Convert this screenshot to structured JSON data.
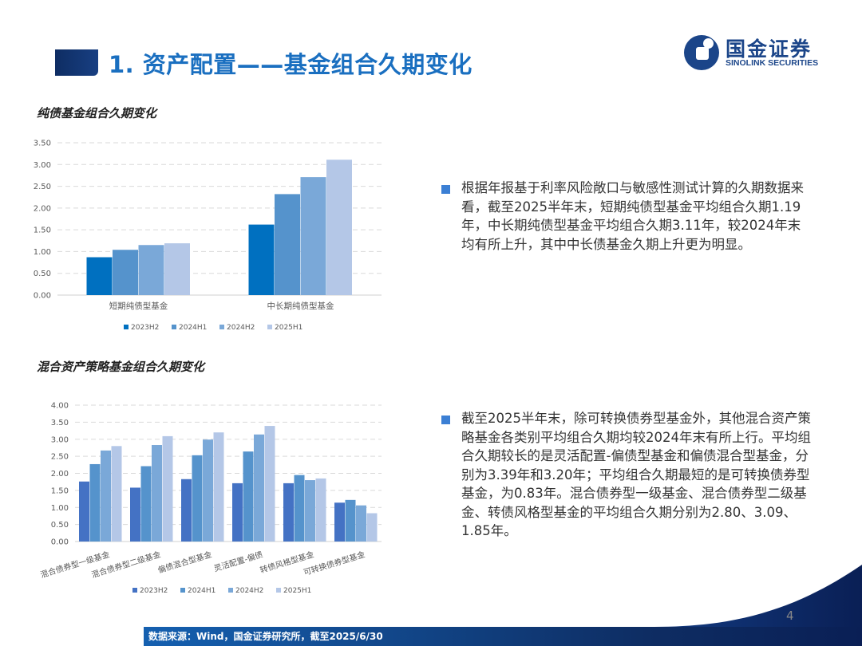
{
  "header": {
    "title": "1. 资产配置——基金组合久期变化",
    "logo_cn": "国金证券",
    "logo_en": "SINOLINK SECURITIES"
  },
  "chart1": {
    "title": "纯债基金组合久期变化"
  },
  "chart2": {
    "title": "混合资产策略基金组合久期变化"
  },
  "bullets": [
    {
      "text": "根据年报基于利率风险敞口与敏感性测试计算的久期数据来看，截至2025半年末，短期纯债型基金平均组合久期1.19年，中长期纯债型基金平均组合久期3.11年，较2024年末均有所上升，其中中长债基金久期上升更为明显。"
    },
    {
      "text": "截至2025半年末，除可转换债券型基金外，其他混合资产策略基金各类别平均组合久期均较2024年末有所上行。平均组合久期较长的是灵活配置-偏债型基金和偏债混合型基金，分别为3.39年和3.20年；平均组合久期最短的是可转换债券型基金，为0.83年。混合债券型一级基金、混合债券型二级基金、转债风格型基金的平均组合久期分别为2.80、3.09、1.85年。"
    }
  ],
  "footer": {
    "source": "数据来源：Wind，国金证券研究所，截至2025/6/30",
    "page_number": "4"
  },
  "colors": {
    "title_blue": "#1a6fc0",
    "brand_navy": "#1b4589",
    "bullet_blue": "#3b7fd4"
  },
  "chart_data": [
    {
      "type": "bar",
      "title": "纯债基金组合久期变化",
      "categories": [
        "短期纯债型基金",
        "中长期纯债型基金"
      ],
      "series": [
        {
          "name": "2023H2",
          "color": "#0070c0",
          "values": [
            0.87,
            1.62
          ]
        },
        {
          "name": "2024H1",
          "color": "#5593cc",
          "values": [
            1.04,
            2.32
          ]
        },
        {
          "name": "2024H2",
          "color": "#7aa8d8",
          "values": [
            1.15,
            2.71
          ]
        },
        {
          "name": "2025H1",
          "color": "#b4c7e7",
          "values": [
            1.19,
            3.11
          ]
        }
      ],
      "yticks": [
        "0.00",
        "0.50",
        "1.00",
        "1.50",
        "2.00",
        "2.50",
        "3.00",
        "3.50"
      ],
      "ylim": [
        0,
        3.5
      ],
      "xlabel": "",
      "ylabel": "",
      "grid": "dashed horizontal",
      "legend_position": "bottom"
    },
    {
      "type": "bar",
      "title": "混合资产策略基金组合久期变化",
      "categories": [
        "混合债券型一级基金",
        "混合债券型二级基金",
        "偏债混合型基金",
        "灵活配置-偏债",
        "转债风格型基金",
        "可转换债券型基金"
      ],
      "series": [
        {
          "name": "2023H2",
          "color": "#4472c4",
          "values": [
            1.76,
            1.58,
            1.83,
            1.71,
            1.71,
            1.14
          ]
        },
        {
          "name": "2024H1",
          "color": "#5593cc",
          "values": [
            2.27,
            2.21,
            2.53,
            2.64,
            1.95,
            1.22
          ]
        },
        {
          "name": "2024H2",
          "color": "#7aa8d8",
          "values": [
            2.67,
            2.83,
            2.99,
            3.14,
            1.8,
            1.06
          ]
        },
        {
          "name": "2025H1",
          "color": "#b4c7e7",
          "values": [
            2.8,
            3.09,
            3.2,
            3.39,
            1.85,
            0.83
          ]
        }
      ],
      "yticks": [
        "0.00",
        "0.50",
        "1.00",
        "1.50",
        "2.00",
        "2.50",
        "3.00",
        "3.50",
        "4.00"
      ],
      "ylim": [
        0,
        4.0
      ],
      "xlabel": "",
      "ylabel": "",
      "grid": "dashed horizontal",
      "legend_position": "bottom"
    }
  ]
}
